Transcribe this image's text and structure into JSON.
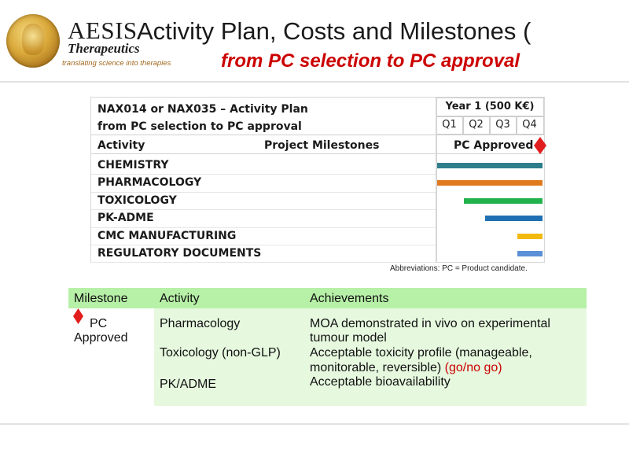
{
  "header": {
    "logo_word": "AESIS",
    "logo_sub": "Therapeutics",
    "logo_tagline": "translating science into therapies",
    "title": "Activity Plan, Costs and Milestones (",
    "subtitle": "from PC selection to PC approval"
  },
  "plan": {
    "heading_line1": "NAX014 or NAX035 – Activity Plan",
    "heading_line2": "from PC selection to PC approval",
    "col_activity": "Activity",
    "col_milestones": "Project Milestones",
    "year_label": "Year 1 (500 K€)",
    "quarters": [
      "Q1",
      "Q2",
      "Q3",
      "Q4"
    ],
    "milestone_label": "PC Approved",
    "activities": [
      {
        "name": "CHEMISTRY",
        "color": "#2e7d8c",
        "start_q": 0,
        "end_q": 4
      },
      {
        "name": "PHARMACOLOGY",
        "color": "#e07a1f",
        "start_q": 0,
        "end_q": 4
      },
      {
        "name": "TOXICOLOGY",
        "color": "#22b24c",
        "start_q": 1,
        "end_q": 4
      },
      {
        "name": "PK-ADME",
        "color": "#1f6fb3",
        "start_q": 1.8,
        "end_q": 4
      },
      {
        "name": "CMC MANUFACTURING",
        "color": "#f2b90f",
        "start_q": 3,
        "end_q": 4
      },
      {
        "name": "REGULATORY DOCUMENTS",
        "color": "#5b8fd6",
        "start_q": 3,
        "end_q": 4
      }
    ],
    "milestone_marker_color": "#e11d1d"
  },
  "abbreviations": "Abbreviations: PC = Product candidate.",
  "milestones_table": {
    "headers": {
      "milestone": "Milestone",
      "activity": "Activity",
      "achievements": "Achievements"
    },
    "milestone_line1": "PC",
    "milestone_line2": "Approved",
    "activities": [
      "Pharmacology",
      "Toxicology (non-GLP)",
      "PK/ADME"
    ],
    "achievement1_line1": "MOA demonstrated in vivo on experimental",
    "achievement1_line2": "tumour model",
    "achievement2_line1": "Acceptable toxicity profile (manageable,",
    "achievement2_line2_a": "monitorable, reversible) ",
    "achievement2_line2_b": "(go/no go)",
    "achievement3": "Acceptable bioavailability"
  }
}
